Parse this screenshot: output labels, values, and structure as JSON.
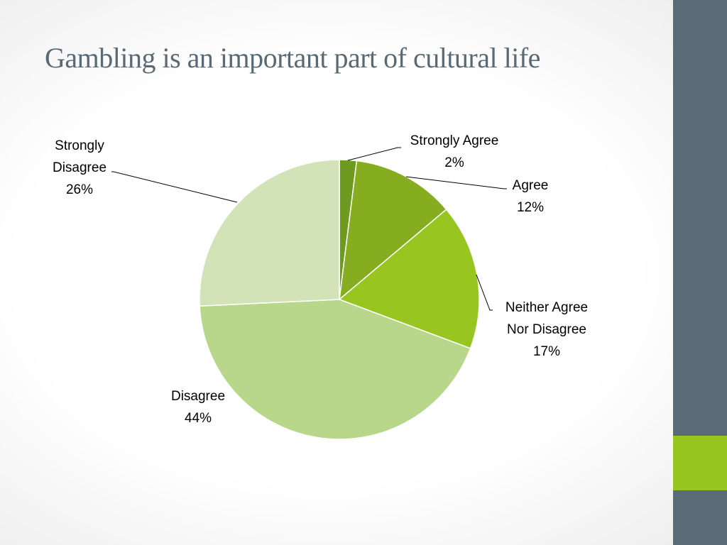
{
  "slide": {
    "title": "Gambling is an important part of cultural life"
  },
  "theme": {
    "sidebar_color": "#5b6b75",
    "accent_color": "#97c51f",
    "title_color": "#5a6a74"
  },
  "chart_data": {
    "type": "pie",
    "title": "",
    "slices": [
      {
        "label": [
          "Strongly Agree"
        ],
        "value_label": "2%",
        "value": 2,
        "color": "#6e9a1f"
      },
      {
        "label": [
          "Agree"
        ],
        "value_label": "12%",
        "value": 12,
        "color": "#86ad20"
      },
      {
        "label": [
          "Neither Agree",
          "Nor Disagree"
        ],
        "value_label": "17%",
        "value": 17,
        "color": "#99c521"
      },
      {
        "label": [
          "Disagree"
        ],
        "value_label": "44%",
        "value": 44,
        "color": "#b8d78a"
      },
      {
        "label": [
          "Strongly",
          "Disagree"
        ],
        "value_label": "26%",
        "value": 26,
        "color": "#d3e3b8"
      }
    ],
    "start_angle_deg": 0,
    "direction": "clockwise",
    "legend": "none",
    "data_labels": "outside with leader lines"
  }
}
